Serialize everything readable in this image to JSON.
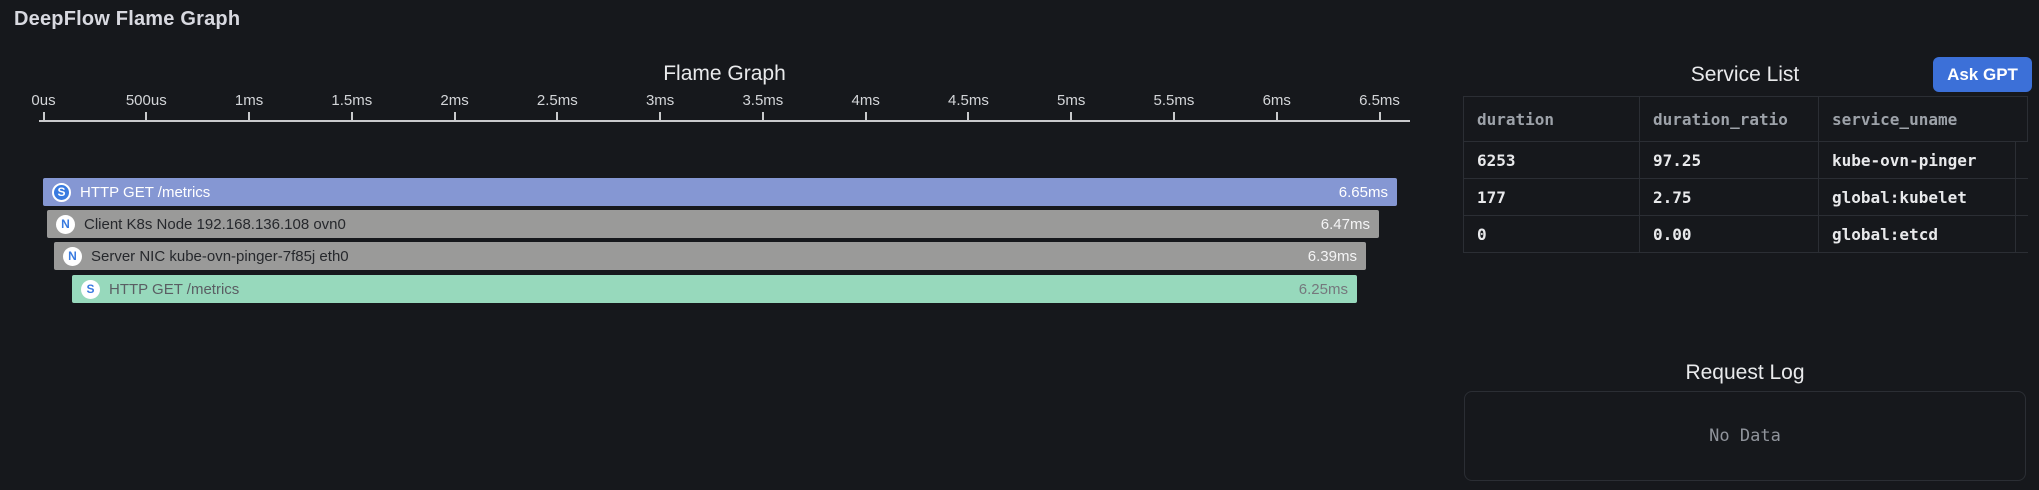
{
  "page_title": "DeepFlow Flame Graph",
  "flame_panel": {
    "title": "Flame Graph",
    "axis_ticks": [
      "0us",
      "500us",
      "1ms",
      "1.5ms",
      "2ms",
      "2.5ms",
      "3ms",
      "3.5ms",
      "4ms",
      "4.5ms",
      "5ms",
      "5.5ms",
      "6ms",
      "6.5ms"
    ],
    "icon_color": "#3a7be0",
    "bars": [
      {
        "icon": "S",
        "icon_style": "inverse",
        "label": "HTTP GET /metrics",
        "duration_label": "6.65ms",
        "duration_ms": 6.65,
        "color": "#8597d3",
        "text_color": "#ffffff",
        "duration_color": "#ffffff"
      },
      {
        "icon": "N",
        "icon_style": "normal",
        "label": "Client K8s Node 192.168.136.108 ovn0",
        "duration_label": "6.47ms",
        "duration_ms": 6.47,
        "color": "#9a9a99",
        "text_color": "#26282c",
        "duration_color": "#f4f4f5"
      },
      {
        "icon": "N",
        "icon_style": "normal",
        "label": "Server NIC kube-ovn-pinger-7f85j eth0",
        "duration_label": "6.39ms",
        "duration_ms": 6.39,
        "color": "#9a9a99",
        "text_color": "#26282c",
        "duration_color": "#f4f4f5"
      },
      {
        "icon": "S",
        "icon_style": "normal",
        "label": "HTTP GET /metrics",
        "duration_label": "6.25ms",
        "duration_ms": 6.25,
        "color": "#97d9bc",
        "text_color": "#5a5e63",
        "duration_color": "#75787d"
      }
    ]
  },
  "service_panel": {
    "title": "Service List",
    "ask_gpt_label": "Ask GPT",
    "ask_gpt_color": "#3c70d8",
    "table": {
      "columns": [
        "duration",
        "duration_ratio",
        "service_uname"
      ],
      "rows": [
        [
          "6253",
          "97.25",
          "kube-ovn-pinger"
        ],
        [
          "177",
          "2.75",
          "global:kubelet"
        ],
        [
          "0",
          "0.00",
          "global:etcd"
        ]
      ]
    }
  },
  "request_log_panel": {
    "title": "Request Log",
    "empty_text": "No Data"
  },
  "chart_data": {
    "type": "flamegraph",
    "title": "Flame Graph",
    "x_axis_unit": "ms",
    "x_axis_ticks_ms": [
      0,
      0.5,
      1,
      1.5,
      2,
      2.5,
      3,
      3.5,
      4,
      4.5,
      5,
      5.5,
      6,
      6.5
    ],
    "frames": [
      {
        "depth": 0,
        "kind": "S",
        "label": "HTTP GET /metrics",
        "duration_ms": 6.65
      },
      {
        "depth": 1,
        "kind": "N",
        "label": "Client K8s Node 192.168.136.108 ovn0",
        "duration_ms": 6.47
      },
      {
        "depth": 2,
        "kind": "N",
        "label": "Server NIC kube-ovn-pinger-7f85j eth0",
        "duration_ms": 6.39
      },
      {
        "depth": 3,
        "kind": "S",
        "label": "HTTP GET /metrics",
        "duration_ms": 6.25
      }
    ]
  }
}
